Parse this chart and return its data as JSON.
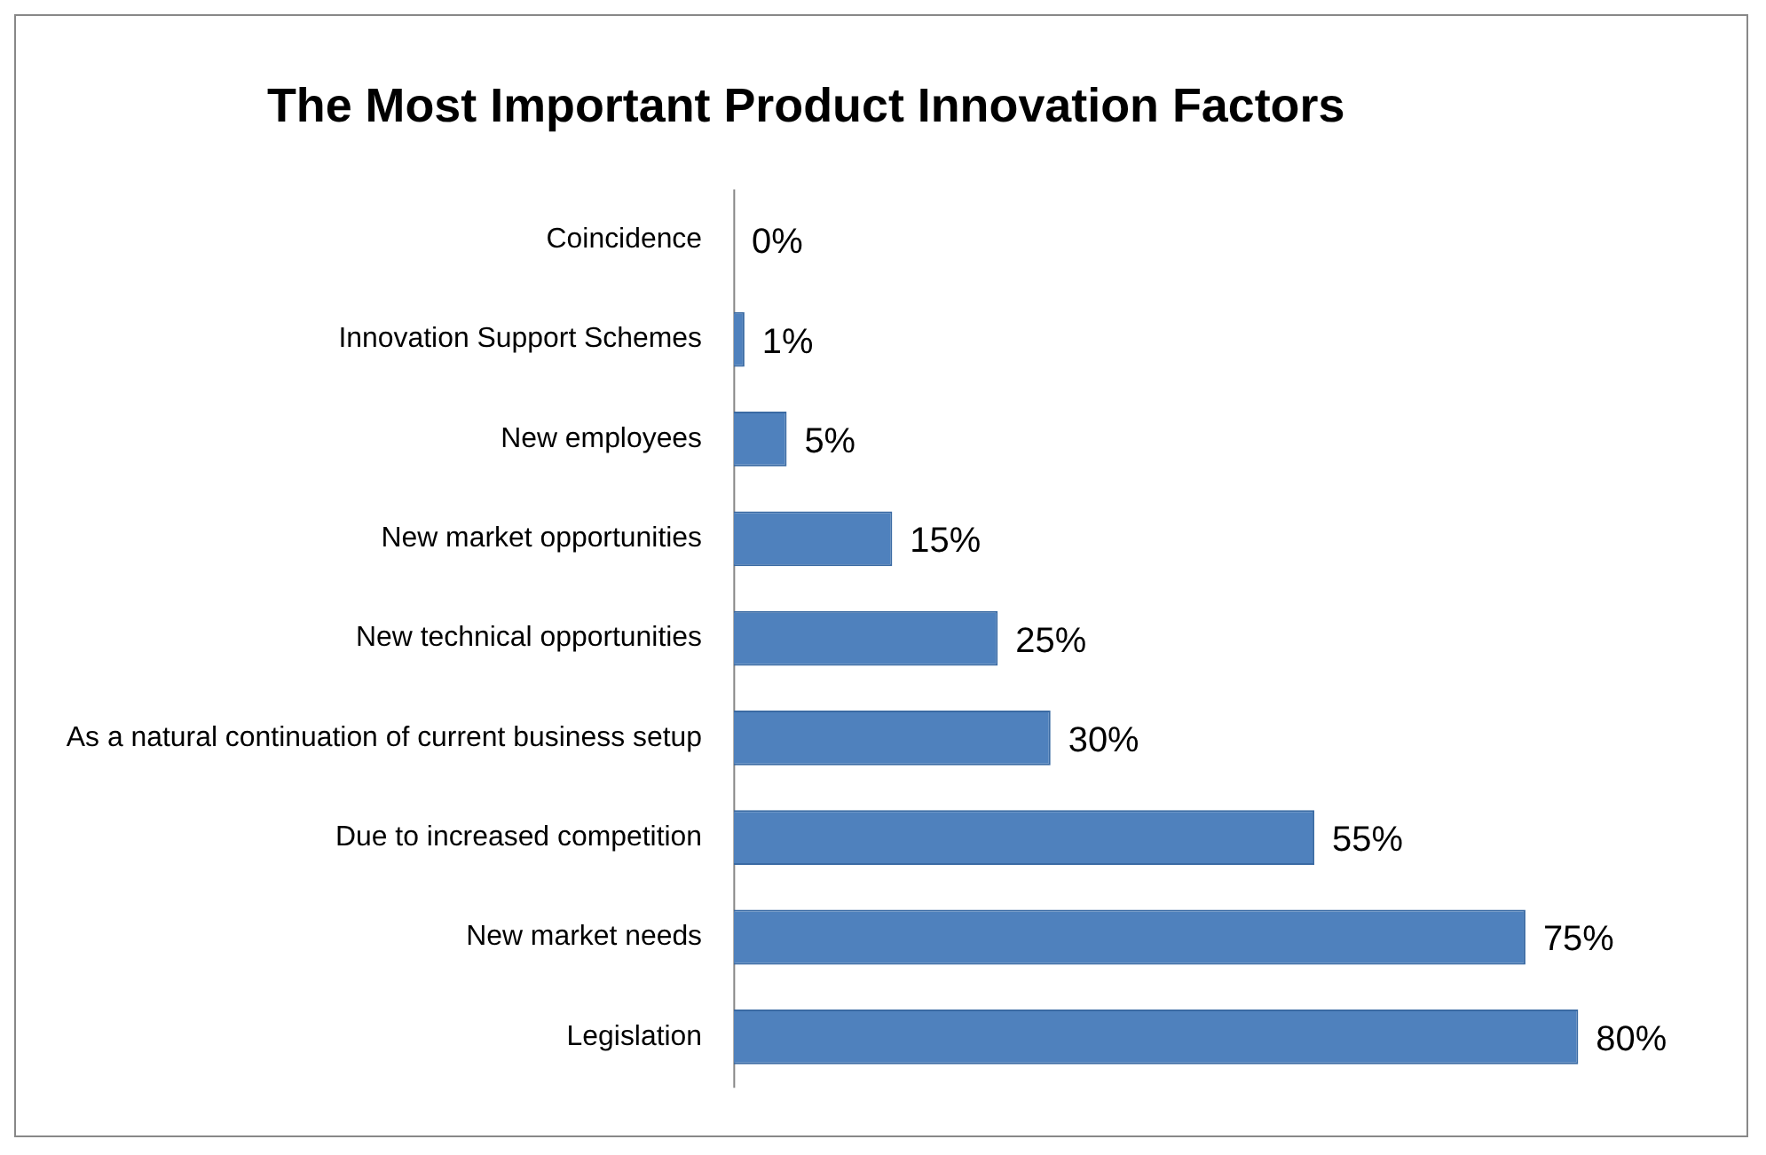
{
  "chart_data": {
    "type": "bar",
    "orientation": "horizontal",
    "title": "The Most Important Product Innovation Factors",
    "categories": [
      "Coincidence",
      "Innovation Support Schemes",
      "New employees",
      "New market opportunities",
      "New technical opportunities",
      "As a natural continuation of current business setup",
      "Due to increased competition",
      "New market needs",
      "Legislation"
    ],
    "values": [
      0,
      1,
      5,
      15,
      25,
      30,
      55,
      75,
      80
    ],
    "value_labels": [
      "0%",
      "1%",
      "5%",
      "15%",
      "25%",
      "30%",
      "55%",
      "75%",
      "80%"
    ],
    "color": "#4f81bd"
  }
}
